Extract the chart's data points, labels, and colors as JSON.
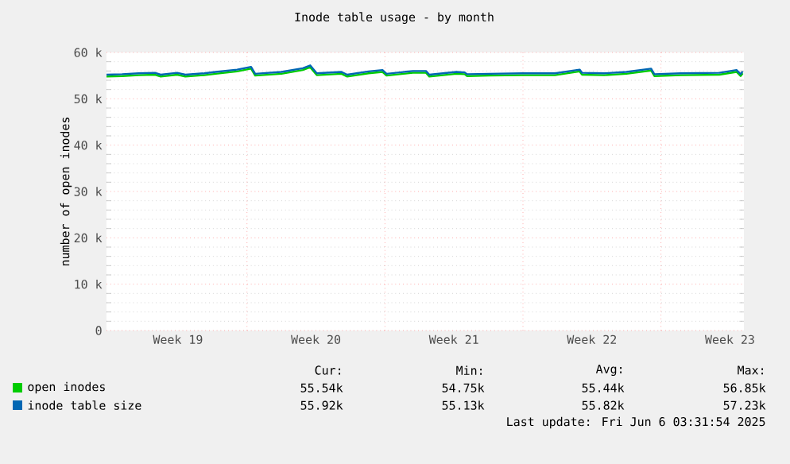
{
  "chart_data": {
    "type": "line",
    "title": "Inode table usage - by month",
    "ylabel": "number of open inodes",
    "xlim": [
      "2025-05-04T21:00",
      "2025-06-06T05:00"
    ],
    "ylim": [
      0,
      60000
    ],
    "xticks": [
      {
        "value": "2025-05-08T12:00",
        "label": "Week 19"
      },
      {
        "value": "2025-05-12",
        "label": null
      },
      {
        "value": "2025-05-15T12:00",
        "label": "Week 20"
      },
      {
        "value": "2025-05-19",
        "label": null
      },
      {
        "value": "2025-05-22T12:00",
        "label": "Week 21"
      },
      {
        "value": "2025-05-26",
        "label": null
      },
      {
        "value": "2025-05-29T12:00",
        "label": "Week 22"
      },
      {
        "value": "2025-06-02",
        "label": null
      },
      {
        "value": "2025-06-05T12:00",
        "label": "Week 23"
      }
    ],
    "yticks": [
      0,
      {
        "value": 10000,
        "label": "10 k"
      },
      {
        "value": 20000,
        "label": "20 k"
      },
      {
        "value": 30000,
        "label": "30 k"
      },
      {
        "value": 40000,
        "label": "40 k"
      },
      {
        "value": 50000,
        "label": "50 k"
      },
      {
        "value": 60000,
        "label": "60 k"
      }
    ],
    "grid": true,
    "legend": "bottom left",
    "marker": "none",
    "line_style": "solid",
    "x": [
      "2025-05-04T21:00",
      "2025-05-05T16:00",
      "2025-05-06T12:00",
      "2025-05-07T08:00",
      "2025-05-07T15:00",
      "2025-05-08T11:00",
      "2025-05-08T21:00",
      "2025-05-09T20:00",
      "2025-05-10T10:00",
      "2025-05-11T12:00",
      "2025-05-12T05:00",
      "2025-05-12T10:00",
      "2025-05-13T18:00",
      "2025-05-14T20:00",
      "2025-05-15T05:00",
      "2025-05-15T13:00",
      "2025-05-16T19:00",
      "2025-05-17T02:00",
      "2025-05-18T04:00",
      "2025-05-18T21:00",
      "2025-05-19T02:00",
      "2025-05-20T10:00",
      "2025-05-21T02:00",
      "2025-05-21T06:00",
      "2025-05-22T15:00",
      "2025-05-23T01:00",
      "2025-05-23T04:00",
      "2025-05-24T07:00",
      "2025-05-25T23:00",
      "2025-05-27T15:00",
      "2025-05-28T21:00",
      "2025-05-29T00:00",
      "2025-05-30T03:00",
      "2025-05-31T06:00",
      "2025-06-01T12:00",
      "2025-06-01T16:00",
      "2025-06-03T00:00",
      "2025-06-04T23:00",
      "2025-06-05T20:00",
      "2025-06-06T01:00",
      "2025-06-06T03:30"
    ],
    "series": [
      {
        "name": "open inodes",
        "color": "#00cc00",
        "values": [
          54800,
          54900,
          55100,
          55200,
          54800,
          55200,
          54800,
          55100,
          55400,
          55900,
          56500,
          55000,
          55400,
          56200,
          56800,
          55100,
          55400,
          54800,
          55500,
          55800,
          55000,
          55600,
          55600,
          54800,
          55400,
          55300,
          54900,
          55000,
          55100,
          55100,
          55900,
          55200,
          55100,
          55400,
          56100,
          54900,
          55100,
          55200,
          55800,
          54900,
          55500
        ]
      },
      {
        "name": "inode table size",
        "color": "#0066b3",
        "values": [
          55200,
          55300,
          55500,
          55600,
          55200,
          55600,
          55200,
          55500,
          55800,
          56300,
          56900,
          55400,
          55800,
          56600,
          57200,
          55500,
          55800,
          55200,
          55900,
          56200,
          55400,
          56000,
          56000,
          55200,
          55800,
          55700,
          55300,
          55400,
          55500,
          55500,
          56300,
          55600,
          55500,
          55800,
          56500,
          55300,
          55500,
          55600,
          56200,
          55300,
          55900
        ]
      }
    ],
    "annotations": [
      "Cur:",
      "Min:",
      "Avg:",
      "Max:",
      "55.54k",
      "54.75k",
      "55.44k",
      "56.85k",
      "55.92k",
      "55.13k",
      "55.82k",
      "57.23k",
      "Last update: Fri Jun  6 03:31:54 2025"
    ]
  }
}
